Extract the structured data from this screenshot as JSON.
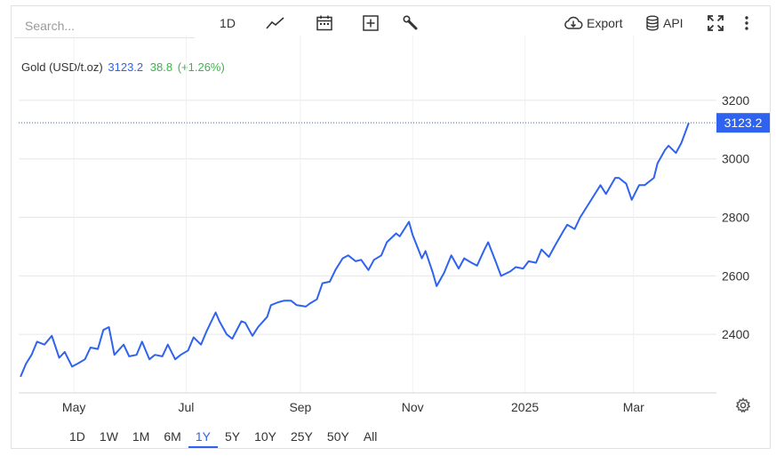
{
  "toolbar": {
    "search_placeholder": "Search...",
    "interval_label": "1D",
    "export_label": "Export",
    "api_label": "API"
  },
  "legend": {
    "name": "Gold (USD/t.oz)",
    "price": "3123.2",
    "change": "38.8",
    "change_pct": "(+1.26%)"
  },
  "ranges": [
    {
      "label": "1D"
    },
    {
      "label": "1W"
    },
    {
      "label": "1M"
    },
    {
      "label": "6M"
    },
    {
      "label": "1Y",
      "active": true
    },
    {
      "label": "5Y"
    },
    {
      "label": "10Y"
    },
    {
      "label": "25Y"
    },
    {
      "label": "50Y"
    },
    {
      "label": "All"
    }
  ],
  "colors": {
    "line": "#2f63ef",
    "positive": "#3db54a",
    "grid": "#e6e6e6",
    "axis_text": "#333333"
  },
  "chart_data": {
    "type": "line",
    "title": "",
    "xlabel": "",
    "ylabel": "",
    "ylim": [
      2200,
      3300
    ],
    "yticks": [
      2400,
      2600,
      2800,
      3000,
      3200
    ],
    "xlim": [
      "2024-04-01",
      "2025-04-15"
    ],
    "xticks": [
      {
        "date": "2024-05-01",
        "label": "May"
      },
      {
        "date": "2024-07-01",
        "label": "Jul"
      },
      {
        "date": "2024-09-01",
        "label": "Sep"
      },
      {
        "date": "2024-11-01",
        "label": "Nov"
      },
      {
        "date": "2025-01-01",
        "label": "2025"
      },
      {
        "date": "2025-03-01",
        "label": "Mar"
      }
    ],
    "last_value_label": "3123.2",
    "last_value": 3123.2,
    "grid": true,
    "series": [
      {
        "x": [
          "2024-04-02",
          "2024-04-05",
          "2024-04-08",
          "2024-04-11",
          "2024-04-15",
          "2024-04-19",
          "2024-04-23",
          "2024-04-26",
          "2024-04-30",
          "2024-05-03",
          "2024-05-07",
          "2024-05-10",
          "2024-05-14",
          "2024-05-17",
          "2024-05-20",
          "2024-05-23",
          "2024-05-28",
          "2024-05-31",
          "2024-06-04",
          "2024-06-07",
          "2024-06-11",
          "2024-06-14",
          "2024-06-18",
          "2024-06-21",
          "2024-06-25",
          "2024-06-28",
          "2024-07-02",
          "2024-07-05",
          "2024-07-09",
          "2024-07-12",
          "2024-07-17",
          "2024-07-19",
          "2024-07-23",
          "2024-07-26",
          "2024-07-31",
          "2024-08-02",
          "2024-08-06",
          "2024-08-09",
          "2024-08-14",
          "2024-08-16",
          "2024-08-20",
          "2024-08-23",
          "2024-08-27",
          "2024-08-30",
          "2024-09-04",
          "2024-09-06",
          "2024-09-10",
          "2024-09-13",
          "2024-09-17",
          "2024-09-20",
          "2024-09-24",
          "2024-09-27",
          "2024-10-01",
          "2024-10-04",
          "2024-10-08",
          "2024-10-11",
          "2024-10-15",
          "2024-10-18",
          "2024-10-23",
          "2024-10-25",
          "2024-10-30",
          "2024-11-01",
          "2024-11-06",
          "2024-11-08",
          "2024-11-12",
          "2024-11-14",
          "2024-11-18",
          "2024-11-22",
          "2024-11-26",
          "2024-11-29",
          "2024-12-03",
          "2024-12-06",
          "2024-12-10",
          "2024-12-12",
          "2024-12-16",
          "2024-12-19",
          "2024-12-24",
          "2024-12-27",
          "2024-12-31",
          "2025-01-03",
          "2025-01-07",
          "2025-01-10",
          "2025-01-14",
          "2025-01-17",
          "2025-01-22",
          "2025-01-24",
          "2025-01-28",
          "2025-01-31",
          "2025-02-04",
          "2025-02-07",
          "2025-02-11",
          "2025-02-14",
          "2025-02-19",
          "2025-02-21",
          "2025-02-25",
          "2025-02-28",
          "2025-03-04",
          "2025-03-07",
          "2025-03-12",
          "2025-03-14",
          "2025-03-18",
          "2025-03-20",
          "2025-03-24",
          "2025-03-27",
          "2025-03-31"
        ],
        "values": [
          2255,
          2300,
          2330,
          2375,
          2365,
          2395,
          2320,
          2340,
          2290,
          2300,
          2315,
          2355,
          2350,
          2415,
          2425,
          2330,
          2365,
          2325,
          2330,
          2375,
          2315,
          2330,
          2325,
          2365,
          2315,
          2330,
          2345,
          2390,
          2365,
          2410,
          2475,
          2445,
          2400,
          2385,
          2445,
          2440,
          2395,
          2425,
          2460,
          2500,
          2510,
          2515,
          2515,
          2500,
          2495,
          2505,
          2520,
          2575,
          2580,
          2620,
          2660,
          2670,
          2650,
          2655,
          2620,
          2655,
          2670,
          2715,
          2745,
          2735,
          2785,
          2740,
          2660,
          2685,
          2610,
          2565,
          2610,
          2670,
          2625,
          2660,
          2645,
          2635,
          2690,
          2715,
          2650,
          2600,
          2615,
          2630,
          2625,
          2650,
          2645,
          2690,
          2665,
          2700,
          2755,
          2775,
          2760,
          2800,
          2840,
          2870,
          2910,
          2880,
          2935,
          2935,
          2915,
          2860,
          2910,
          2910,
          2935,
          2985,
          3030,
          3045,
          3020,
          3055,
          3123.2
        ]
      }
    ]
  }
}
